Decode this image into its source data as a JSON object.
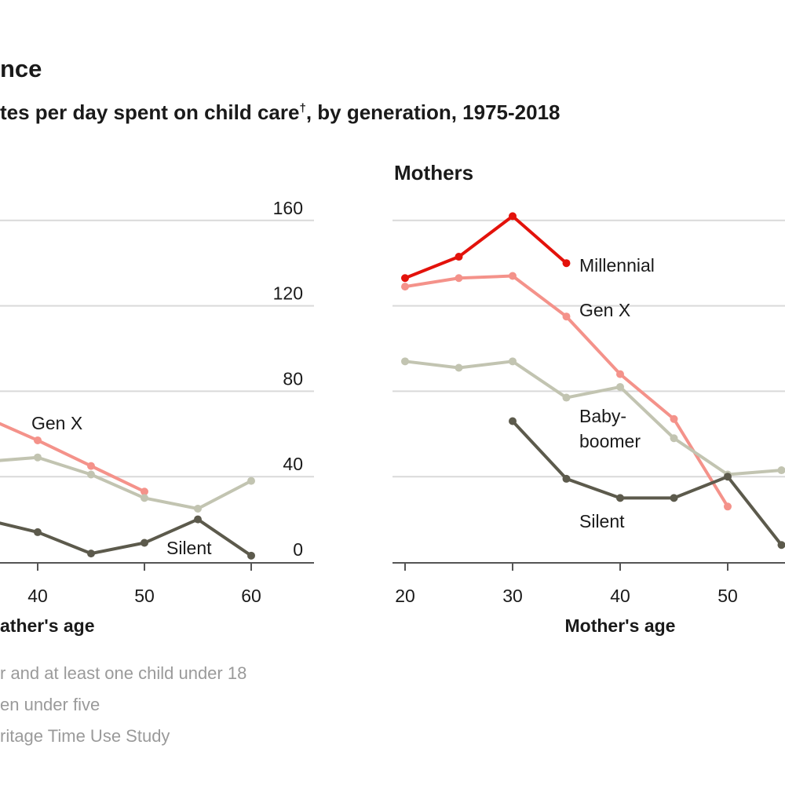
{
  "header": {
    "title": "nce",
    "subtitle": "tes per day spent on child care",
    "subtitle_mark": "†",
    "subtitle_tail": ", by generation, 1975-2018"
  },
  "footnotes": [
    "r and at least one child under 18",
    "en under five",
    "ritage Time Use Study"
  ],
  "colors": {
    "Millennial": "#e3120b",
    "Gen X": "#f4928a",
    "Baby-boomer": "#c2c4b1",
    "Silent": "#5c5a4c",
    "grid": "#d9d9d9",
    "axis": "#555555"
  },
  "chart_data": [
    {
      "type": "line",
      "panel": "left (fathers, partially visible)",
      "title": "",
      "xlabel": "ather's age",
      "ylabel": "",
      "ylim": [
        0,
        160
      ],
      "y_ticks": [
        0,
        40,
        80,
        120,
        160
      ],
      "x_ticks": [
        40,
        50,
        60
      ],
      "grid": true,
      "series": [
        {
          "name": "Gen X",
          "x": [
            35,
            40,
            45,
            50
          ],
          "values": [
            68,
            57,
            45,
            33
          ]
        },
        {
          "name": "Baby-boomer",
          "x": [
            35,
            40,
            45,
            50,
            55,
            60
          ],
          "values": [
            47,
            49,
            41,
            30,
            25,
            38
          ]
        },
        {
          "name": "Silent",
          "x": [
            35,
            40,
            45,
            50,
            55,
            60
          ],
          "values": [
            20,
            14,
            4,
            9,
            20,
            3
          ]
        }
      ],
      "labels": [
        {
          "series": "Gen X",
          "text": "Gen X"
        },
        {
          "series": "Silent",
          "text": "Silent"
        }
      ]
    },
    {
      "type": "line",
      "panel": "Mothers",
      "title": "Mothers",
      "xlabel": "Mother's age",
      "ylabel": "",
      "ylim": [
        0,
        160
      ],
      "x_ticks": [
        20,
        30,
        40,
        50
      ],
      "grid": true,
      "series": [
        {
          "name": "Millennial",
          "x": [
            20,
            25,
            30,
            35
          ],
          "values": [
            133,
            143,
            162,
            140
          ]
        },
        {
          "name": "Gen X",
          "x": [
            20,
            25,
            30,
            35,
            40,
            45,
            50
          ],
          "values": [
            129,
            133,
            134,
            115,
            88,
            67,
            26
          ]
        },
        {
          "name": "Baby-boomer",
          "x": [
            20,
            25,
            30,
            35,
            40,
            45,
            50,
            55
          ],
          "values": [
            94,
            91,
            94,
            77,
            82,
            58,
            41,
            43
          ]
        },
        {
          "name": "Silent",
          "x": [
            30,
            35,
            40,
            45,
            50,
            55
          ],
          "values": [
            66,
            39,
            30,
            30,
            40,
            8
          ]
        }
      ],
      "labels": [
        {
          "series": "Millennial",
          "text": "Millennial"
        },
        {
          "series": "Gen X",
          "text": "Gen X"
        },
        {
          "series": "Baby-boomer",
          "text": "Baby-"
        },
        {
          "series": "Baby-boomer",
          "text": "boomer"
        },
        {
          "series": "Silent",
          "text": "Silent"
        }
      ]
    }
  ]
}
